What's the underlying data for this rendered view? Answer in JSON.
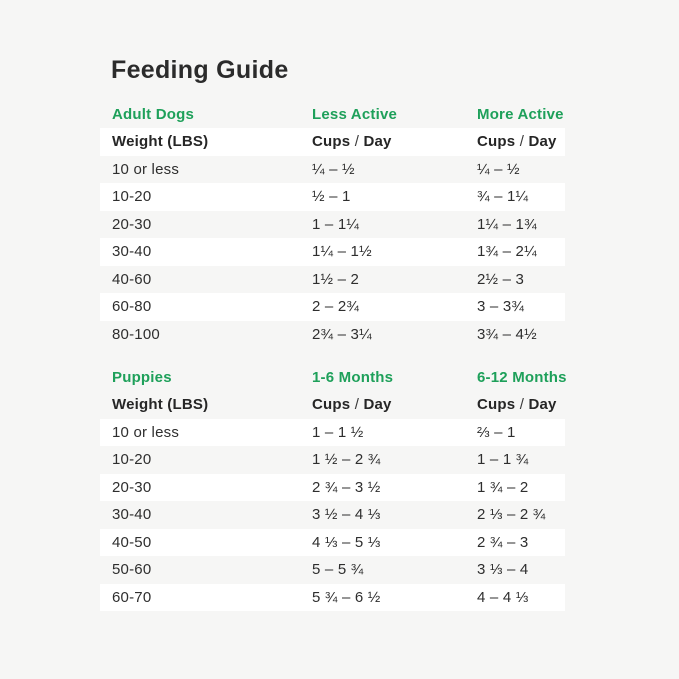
{
  "page": {
    "title": "Feeding Guide",
    "colors": {
      "background": "#f6f6f5",
      "row_highlight": "#ffffff",
      "accent_green": "#1ea05a",
      "text_dark": "#2b2b2b"
    }
  },
  "adult": {
    "section_label": "Adult Dogs",
    "col2_label": "Less Active",
    "col3_label": "More Active",
    "header": {
      "weight": "Weight (LBS)",
      "col2": {
        "w1": "Cups",
        "sep": "/",
        "w2": "Day"
      },
      "col3": {
        "w1": "Cups",
        "sep": "/",
        "w2": "Day"
      }
    },
    "rows": [
      {
        "weight": "10 or less",
        "col2": "¼ – ½",
        "col3": "¼ – ½"
      },
      {
        "weight": "10-20",
        "col2": "½ – 1",
        "col3": "¾ – 1¼"
      },
      {
        "weight": "20-30",
        "col2": "1 – 1¼",
        "col3": "1¼ – 1¾"
      },
      {
        "weight": "30-40",
        "col2": "1¼ – 1½",
        "col3": "1¾ – 2¼"
      },
      {
        "weight": "40-60",
        "col2": "1½ – 2",
        "col3": "2½ – 3"
      },
      {
        "weight": "60-80",
        "col2": "2 – 2¾",
        "col3": "3 – 3¾"
      },
      {
        "weight": "80-100",
        "col2": "2¾ – 3¼",
        "col3": "3¾ – 4½"
      }
    ]
  },
  "puppies": {
    "section_label": "Puppies",
    "col2_label": "1-6 Months",
    "col3_label": "6-12 Months",
    "header": {
      "weight": "Weight (LBS)",
      "col2": {
        "w1": "Cups",
        "sep": "/",
        "w2": "Day"
      },
      "col3": {
        "w1": "Cups",
        "sep": "/",
        "w2": "Day"
      }
    },
    "rows": [
      {
        "weight": "10 or less",
        "col2": "1 – 1 ½",
        "col3": "⅔ – 1"
      },
      {
        "weight": "10-20",
        "col2": "1 ½ – 2 ¾",
        "col3": "1 – 1 ¾"
      },
      {
        "weight": "20-30",
        "col2": "2 ¾ – 3 ½",
        "col3": "1 ¾ – 2"
      },
      {
        "weight": "30-40",
        "col2": "3 ½ – 4 ⅓",
        "col3": "2 ⅓ – 2 ¾"
      },
      {
        "weight": "40-50",
        "col2": "4 ⅓ – 5 ⅓",
        "col3": "2 ¾ – 3"
      },
      {
        "weight": "50-60",
        "col2": "5 – 5 ¾",
        "col3": "3 ⅓ – 4"
      },
      {
        "weight": "60-70",
        "col2": "5 ¾ – 6 ½",
        "col3": "4 – 4 ⅓"
      }
    ]
  }
}
